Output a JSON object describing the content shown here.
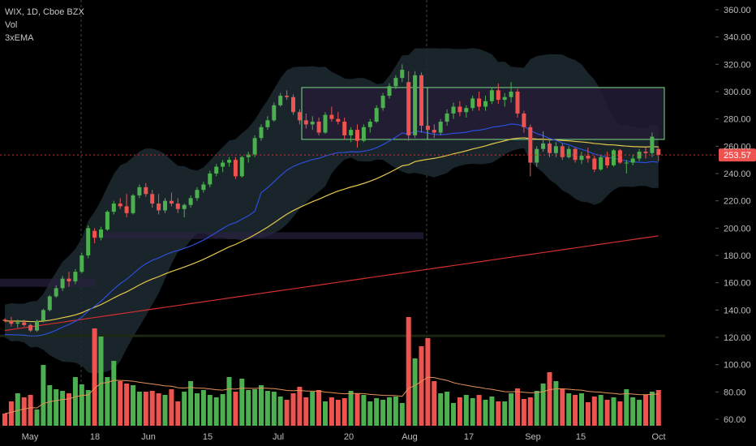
{
  "legend": {
    "symbol_line": "WIX, 1D, Cboe BZX",
    "vol": "Vol",
    "ema": "3xEMA"
  },
  "price_label": "253.57",
  "colors": {
    "background": "#000000",
    "up": "#4caf50",
    "down": "#ef5350",
    "ema_short": "#e6c84a",
    "ema_mid": "#2b4fd8",
    "ema_long": "#d32f2f",
    "band_fill": "#1d2b33",
    "box_fill": "#2a2140",
    "box_border": "#7ddc8a",
    "price_line": "#d32f2f",
    "axis_text": "#bdbdbd"
  },
  "chart_data": {
    "type": "candlestick",
    "price_axis": {
      "ticks": [
        60,
        80,
        100,
        120,
        140,
        160,
        180,
        200,
        220,
        240,
        260,
        280,
        300,
        320,
        340,
        360
      ],
      "range": [
        53,
        368
      ]
    },
    "time_axis": {
      "labels": [
        "May",
        "18",
        "Jun",
        "15",
        "Jul",
        "20",
        "Aug",
        "17",
        "Sep",
        "15",
        "Oct"
      ]
    },
    "last_price": 253.57,
    "candles": [
      [
        133,
        134,
        131,
        132
      ],
      [
        132,
        135,
        128,
        130
      ],
      [
        130,
        133,
        127,
        131
      ],
      [
        131,
        133,
        128,
        129
      ],
      [
        129,
        130,
        124,
        125
      ],
      [
        125,
        133,
        124,
        132
      ],
      [
        132,
        141,
        131,
        140
      ],
      [
        140,
        151,
        139,
        150
      ],
      [
        150,
        158,
        149,
        156
      ],
      [
        156,
        165,
        154,
        163
      ],
      [
        163,
        168,
        157,
        161
      ],
      [
        161,
        170,
        159,
        168
      ],
      [
        168,
        182,
        167,
        180
      ],
      [
        180,
        202,
        178,
        200
      ],
      [
        198,
        200,
        189,
        193
      ],
      [
        193,
        201,
        191,
        199
      ],
      [
        199,
        213,
        198,
        212
      ],
      [
        212,
        220,
        210,
        218
      ],
      [
        218,
        222,
        214,
        216
      ],
      [
        216,
        225,
        208,
        211
      ],
      [
        211,
        225,
        210,
        224
      ],
      [
        224,
        232,
        222,
        230
      ],
      [
        230,
        233,
        223,
        225
      ],
      [
        225,
        228,
        215,
        218
      ],
      [
        218,
        225,
        210,
        213
      ],
      [
        213,
        222,
        211,
        220
      ],
      [
        220,
        226,
        216,
        218
      ],
      [
        218,
        222,
        211,
        214
      ],
      [
        214,
        218,
        208,
        217
      ],
      [
        217,
        224,
        215,
        222
      ],
      [
        222,
        230,
        220,
        228
      ],
      [
        228,
        234,
        226,
        232
      ],
      [
        232,
        242,
        230,
        240
      ],
      [
        240,
        247,
        238,
        245
      ],
      [
        245,
        250,
        241,
        248
      ],
      [
        248,
        252,
        245,
        250
      ],
      [
        250,
        252,
        236,
        238
      ],
      [
        238,
        253,
        237,
        252
      ],
      [
        252,
        256,
        248,
        254
      ],
      [
        254,
        268,
        252,
        266
      ],
      [
        266,
        276,
        264,
        274
      ],
      [
        274,
        282,
        272,
        279
      ],
      [
        279,
        292,
        278,
        290
      ],
      [
        290,
        299,
        289,
        297
      ],
      [
        297,
        301,
        294,
        296
      ],
      [
        296,
        298,
        283,
        285
      ],
      [
        285,
        287,
        276,
        279
      ],
      [
        279,
        284,
        273,
        276
      ],
      [
        276,
        282,
        272,
        278
      ],
      [
        278,
        281,
        268,
        270
      ],
      [
        270,
        285,
        269,
        283
      ],
      [
        283,
        289,
        278,
        280
      ],
      [
        280,
        285,
        276,
        278
      ],
      [
        278,
        281,
        265,
        268
      ],
      [
        268,
        274,
        263,
        272
      ],
      [
        272,
        276,
        259,
        264
      ],
      [
        264,
        276,
        263,
        274
      ],
      [
        274,
        280,
        270,
        278
      ],
      [
        278,
        290,
        277,
        288
      ],
      [
        288,
        299,
        286,
        297
      ],
      [
        297,
        306,
        295,
        304
      ],
      [
        304,
        312,
        302,
        310
      ],
      [
        310,
        320,
        307,
        316
      ],
      [
        307,
        315,
        264,
        268
      ],
      [
        268,
        315,
        266,
        312
      ],
      [
        312,
        314,
        270,
        275
      ],
      [
        275,
        282,
        268,
        272
      ],
      [
        272,
        276,
        266,
        270
      ],
      [
        270,
        280,
        268,
        278
      ],
      [
        278,
        287,
        275,
        284
      ],
      [
        284,
        292,
        280,
        289
      ],
      [
        289,
        293,
        282,
        285
      ],
      [
        285,
        290,
        281,
        288
      ],
      [
        288,
        297,
        286,
        295
      ],
      [
        295,
        300,
        286,
        289
      ],
      [
        289,
        297,
        286,
        293
      ],
      [
        293,
        303,
        291,
        301
      ],
      [
        301,
        306,
        291,
        294
      ],
      [
        294,
        299,
        289,
        296
      ],
      [
        296,
        307,
        292,
        300
      ],
      [
        300,
        302,
        281,
        284
      ],
      [
        284,
        286,
        270,
        274
      ],
      [
        274,
        276,
        238,
        248
      ],
      [
        248,
        260,
        245,
        258
      ],
      [
        258,
        271,
        256,
        262
      ],
      [
        262,
        265,
        252,
        255
      ],
      [
        255,
        263,
        252,
        260
      ],
      [
        260,
        262,
        250,
        252
      ],
      [
        252,
        260,
        251,
        258
      ],
      [
        258,
        259,
        248,
        250
      ],
      [
        250,
        256,
        247,
        253
      ],
      [
        253,
        259,
        248,
        251
      ],
      [
        251,
        253,
        241,
        243
      ],
      [
        243,
        253,
        242,
        252
      ],
      [
        252,
        256,
        244,
        246
      ],
      [
        246,
        258,
        245,
        257
      ],
      [
        257,
        258,
        247,
        248
      ],
      [
        248,
        250,
        240,
        248
      ],
      [
        248,
        254,
        246,
        251
      ],
      [
        251,
        258,
        249,
        256
      ],
      [
        256,
        259,
        251,
        255
      ],
      [
        255,
        270,
        252,
        267
      ],
      [
        258,
        260,
        249,
        253.57
      ]
    ],
    "volume_bars": [
      15,
      30,
      40,
      35,
      38,
      20,
      75,
      50,
      45,
      43,
      40,
      60,
      51,
      44,
      120,
      110,
      60,
      80,
      55,
      52,
      50,
      42,
      42,
      43,
      40,
      38,
      45,
      30,
      42,
      55,
      40,
      44,
      38,
      35,
      39,
      60,
      42,
      58,
      44,
      45,
      50,
      43,
      42,
      36,
      32,
      40,
      48,
      35,
      42,
      44,
      30,
      35,
      32,
      34,
      43,
      40,
      38,
      30,
      34,
      32,
      35,
      36,
      28,
      134,
      83,
      98,
      108,
      55,
      40,
      42,
      28,
      35,
      38,
      34,
      38,
      32,
      36,
      30,
      30,
      40,
      46,
      33,
      35,
      43,
      52,
      66,
      55,
      46,
      40,
      38,
      40,
      29,
      36,
      38,
      32,
      35,
      30,
      45,
      35,
      32,
      38,
      42,
      44
    ],
    "ema_short": [
      [
        0,
        126
      ],
      [
        10,
        127
      ],
      [
        20,
        129
      ],
      [
        30,
        132
      ],
      [
        40,
        136
      ],
      [
        50,
        142
      ],
      [
        60,
        148
      ],
      [
        70,
        155
      ],
      [
        80,
        163
      ],
      [
        90,
        172
      ],
      [
        100,
        182
      ],
      [
        110,
        195
      ],
      [
        120,
        206
      ],
      [
        130,
        216
      ],
      [
        140,
        224
      ],
      [
        150,
        232
      ],
      [
        160,
        238
      ],
      [
        170,
        243
      ],
      [
        180,
        247
      ],
      [
        190,
        250
      ],
      [
        200,
        252
      ],
      [
        210,
        255
      ],
      [
        220,
        257
      ],
      [
        230,
        259
      ],
      [
        240,
        261
      ],
      [
        250,
        262
      ],
      [
        260,
        263
      ],
      [
        270,
        263
      ],
      [
        280,
        262
      ],
      [
        290,
        261
      ],
      [
        300,
        259
      ],
      [
        310,
        257
      ],
      [
        320,
        256
      ],
      [
        330,
        254
      ],
      [
        340,
        253
      ],
      [
        350,
        251
      ],
      [
        360,
        250
      ],
      [
        370,
        249
      ],
      [
        380,
        249
      ],
      [
        390,
        249
      ],
      [
        400,
        250
      ],
      [
        410,
        251
      ],
      [
        420,
        252
      ],
      [
        430,
        253
      ],
      [
        440,
        254
      ],
      [
        450,
        254
      ],
      [
        460,
        254
      ],
      [
        470,
        253
      ],
      [
        480,
        253
      ],
      [
        490,
        253
      ],
      [
        500,
        253
      ],
      [
        510,
        254
      ],
      [
        520,
        255
      ],
      [
        530,
        256
      ],
      [
        540,
        257
      ]
    ]
  }
}
